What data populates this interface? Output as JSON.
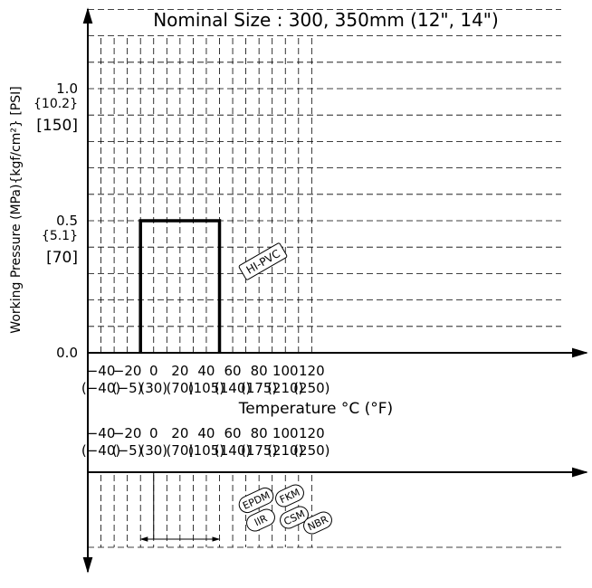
{
  "chart_data": {
    "type": "line",
    "title": "Nominal Size : 300, 350mm (12\", 14\")",
    "xlabel": "Temperature °C (°F)",
    "ylabel": "Working Pressure (MPa){kgf/cm²} [PSI]",
    "x_unit_ticks": [
      {
        "c": "−40",
        "f": "(−40)"
      },
      {
        "c": "−20",
        "f": "(−5)"
      },
      {
        "c": "0",
        "f": "(30)"
      },
      {
        "c": "20",
        "f": "(70)"
      },
      {
        "c": "40",
        "f": "(105)"
      },
      {
        "c": "60",
        "f": "(140)"
      },
      {
        "c": "80",
        "f": "(175)"
      },
      {
        "c": "100",
        "f": "(210)"
      },
      {
        "c": "120",
        "f": "(250)"
      }
    ],
    "xlim": [
      -50,
      130
    ],
    "ylim": [
      0,
      1.3
    ],
    "y_ticks": [
      {
        "value": 0.0,
        "mpa": "0.0",
        "kgf": "",
        "psi": ""
      },
      {
        "value": 0.5,
        "mpa": "0.5",
        "kgf": "{5.1}",
        "psi": "[70]"
      },
      {
        "value": 1.0,
        "mpa": "1.0",
        "kgf": "{10.2}",
        "psi": "[150]"
      }
    ],
    "grid": true,
    "series": [
      {
        "name": "HI-PVC",
        "x": [
          -10,
          -10,
          50,
          50
        ],
        "y": [
          0,
          0.5,
          0.5,
          0
        ]
      }
    ],
    "seal_materials": {
      "labels": [
        "EPDM",
        "FKM",
        "IIR",
        "CSM",
        "NBR"
      ],
      "range": [
        -10,
        50
      ]
    }
  }
}
